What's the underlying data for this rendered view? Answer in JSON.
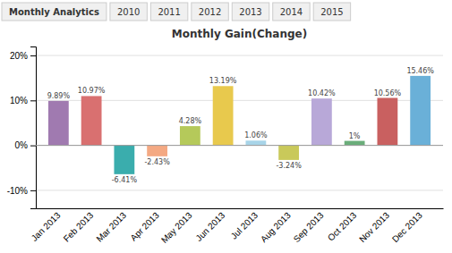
{
  "chart_data": {
    "type": "bar",
    "title": "Monthly Gain(Change)",
    "annotations": [
      "Monthly Analytics",
      "2010",
      "2011",
      "2012",
      "2013",
      "2014",
      "2015"
    ],
    "categories": [
      "Jan 2013",
      "Feb 2013",
      "Mar 2013",
      "Apr 2013",
      "May 2013",
      "Jun 2013",
      "Jul 2013",
      "Aug 2013",
      "Sep 2013",
      "Oct 2013",
      "Nov 2013",
      "Dec 2013"
    ],
    "values": [
      9.89,
      10.97,
      -6.41,
      -2.43,
      4.28,
      13.19,
      1.06,
      -3.24,
      10.42,
      1.0,
      10.56,
      15.46
    ],
    "value_labels": [
      "9.89%",
      "10.97%",
      "-6.41%",
      "-2.43%",
      "4.28%",
      "13.19%",
      "1.06%",
      "-3.24%",
      "10.42%",
      "1%",
      "10.56%",
      "15.46%"
    ],
    "colors": [
      "#a07ab0",
      "#d97070",
      "#3aadad",
      "#f4a983",
      "#b5c95a",
      "#e8c94d",
      "#a8d4e8",
      "#c9c95a",
      "#b8a8d8",
      "#6aad7a",
      "#c96060",
      "#6ab0d8"
    ],
    "ylim": [
      -14,
      22
    ],
    "yticks": [
      {
        "value": -10,
        "label": "-10%"
      },
      {
        "value": 0,
        "label": "0%"
      },
      {
        "value": 10,
        "label": "10%"
      },
      {
        "value": 20,
        "label": "20%"
      }
    ],
    "grid": true,
    "data_labels": true
  }
}
